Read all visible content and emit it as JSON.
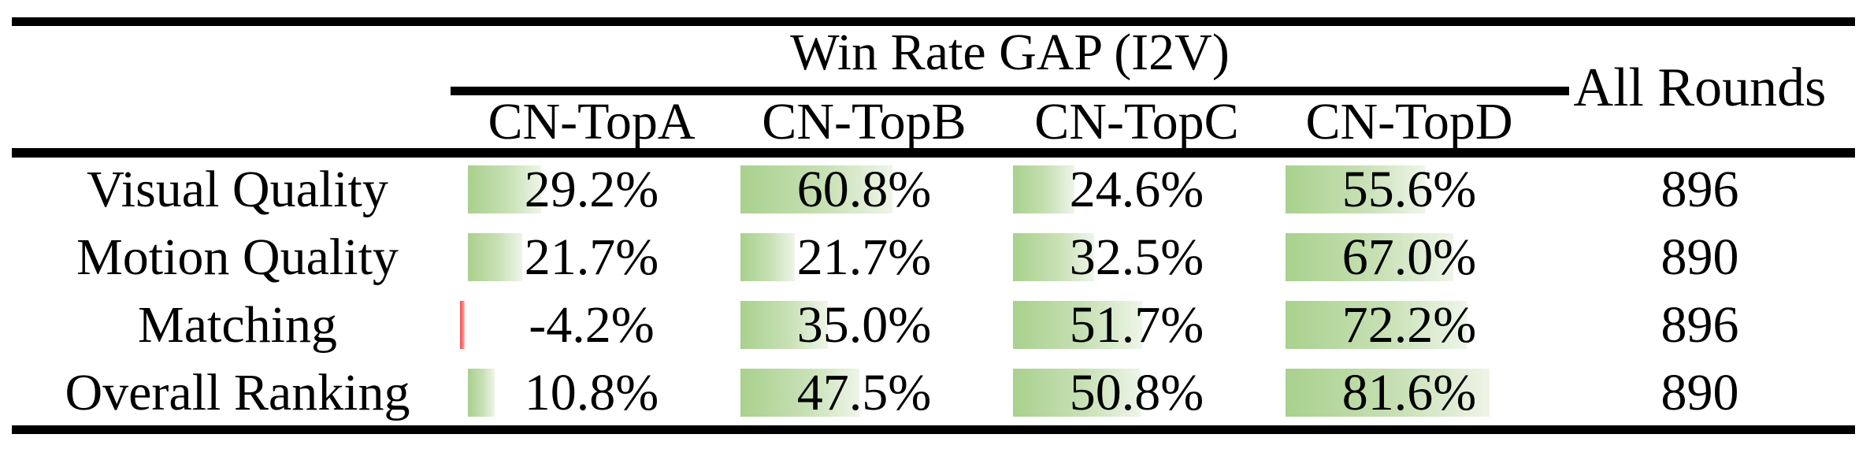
{
  "header": {
    "group_title": "Win Rate GAP (I2V)",
    "all_rounds_label": "All Rounds"
  },
  "colors": {
    "bar_positive_start": "#a9d18e",
    "bar_positive_end": "#eef5e8",
    "bar_negative_start": "#f64a4a",
    "bar_negative_end": "#fdc9c9",
    "rule": "#000000",
    "text": "#000000",
    "background": "#ffffff"
  },
  "chart_data": {
    "type": "table",
    "title": "Win Rate GAP (I2V)",
    "columns": [
      "CN-TopA",
      "CN-TopB",
      "CN-TopC",
      "CN-TopD"
    ],
    "extra_column": "All Rounds",
    "rows": [
      {
        "label": "Visual Quality",
        "values": [
          29.2,
          60.8,
          24.6,
          55.6
        ],
        "display": [
          "29.2%",
          "60.8%",
          "24.6%",
          "55.6%"
        ],
        "all_rounds": "896"
      },
      {
        "label": "Motion Quality",
        "values": [
          21.7,
          21.7,
          32.5,
          67.0
        ],
        "display": [
          "21.7%",
          "21.7%",
          "32.5%",
          "67.0%"
        ],
        "all_rounds": "890"
      },
      {
        "label": "Matching",
        "values": [
          -4.2,
          35.0,
          51.7,
          72.2
        ],
        "display": [
          "-4.2%",
          "35.0%",
          "51.7%",
          "72.2%"
        ],
        "all_rounds": "896"
      },
      {
        "label": "Overall Ranking",
        "values": [
          10.8,
          47.5,
          50.8,
          81.6
        ],
        "display": [
          "10.8%",
          "47.5%",
          "50.8%",
          "81.6%"
        ],
        "all_rounds": "890"
      }
    ],
    "layout_hints": {
      "bars": "green gradient data bars, width proportional to percentage (about 3.18 px per percent); negative value rendered as thin red bar",
      "value_range_percent": [
        0,
        100
      ],
      "grid": "booktabs-style horizontal rules only"
    }
  }
}
